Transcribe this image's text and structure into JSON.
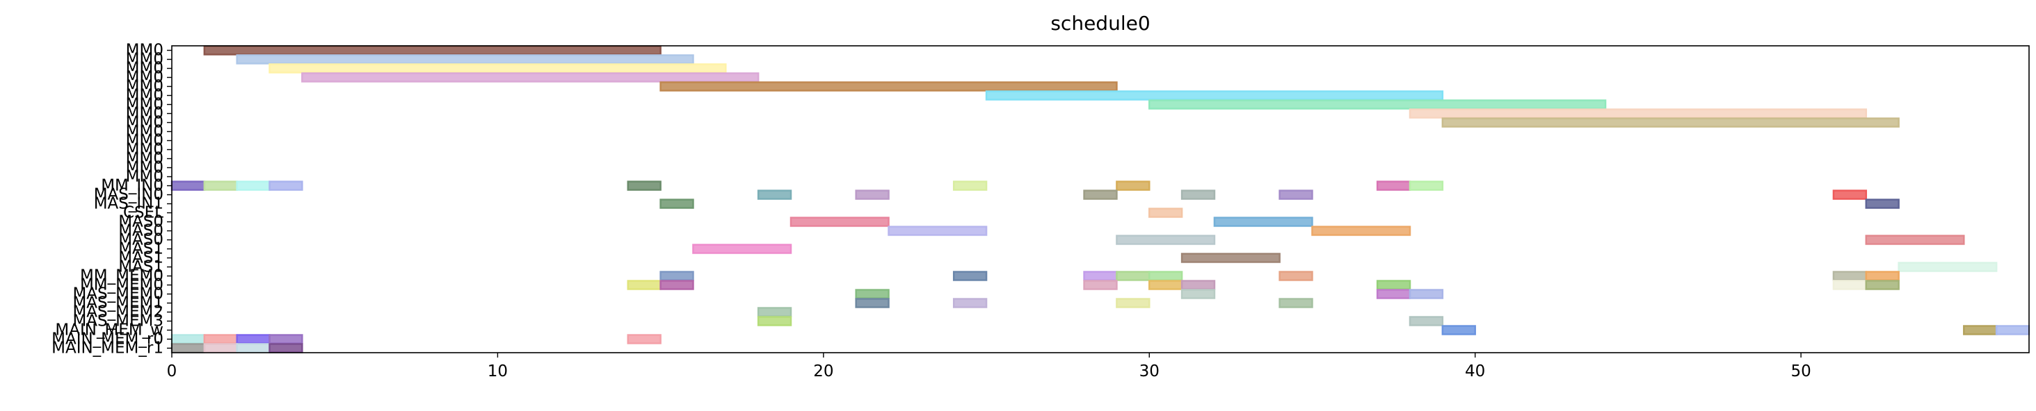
{
  "chart_data": {
    "type": "gantt",
    "title": "schedule0",
    "xlabel": "",
    "ylabel": "",
    "xlim": [
      0,
      57
    ],
    "grid": false,
    "legend": "none",
    "x_ticks": [
      0,
      10,
      20,
      30,
      40,
      50
    ],
    "rows": [
      "MM0",
      "MM0",
      "MM0",
      "MM0",
      "MM0",
      "MM0",
      "MM0",
      "MM0",
      "MM0",
      "MM0",
      "MM0",
      "MM0",
      "MM0",
      "MM0",
      "MM0",
      "MM_IN0",
      "MAS_IN0",
      "MAS_IN1",
      "CSEL",
      "MAS0",
      "MAS0",
      "MAS0",
      "MAS1",
      "MAS1",
      "MAS1",
      "MM_MEM0",
      "MM_MEM0",
      "MAS_MEM0",
      "MAS_MEM1",
      "MAS_MEM2",
      "MAS_MEM3",
      "MAIN_MEM_w",
      "MAIN_MEM_r0",
      "MAIN_MEM_r1"
    ],
    "bars": [
      {
        "row": 0,
        "start": 1,
        "end": 15,
        "color": "#8c564b"
      },
      {
        "row": 1,
        "start": 2,
        "end": 16,
        "color": "#aec7e8"
      },
      {
        "row": 2,
        "start": 3,
        "end": 17,
        "color": "#fff2a8"
      },
      {
        "row": 3,
        "start": 4,
        "end": 18,
        "color": "#dba8d6"
      },
      {
        "row": 4,
        "start": 15,
        "end": 29,
        "color": "#c08850"
      },
      {
        "row": 5,
        "start": 25,
        "end": 39,
        "color": "#7fe0f5"
      },
      {
        "row": 6,
        "start": 30,
        "end": 44,
        "color": "#8fe8bc"
      },
      {
        "row": 7,
        "start": 38,
        "end": 52,
        "color": "#f7d4c0"
      },
      {
        "row": 8,
        "start": 39,
        "end": 53,
        "color": "#c9bc8c"
      },
      {
        "row": 15,
        "start": 0,
        "end": 1,
        "color": "#7d68c2"
      },
      {
        "row": 15,
        "start": 1,
        "end": 2,
        "color": "#bfe0a0"
      },
      {
        "row": 15,
        "start": 2,
        "end": 3,
        "color": "#b2f5ee"
      },
      {
        "row": 15,
        "start": 3,
        "end": 4,
        "color": "#aab4ee"
      },
      {
        "row": 15,
        "start": 14,
        "end": 15,
        "color": "#6b8c6b"
      },
      {
        "row": 15,
        "start": 24,
        "end": 25,
        "color": "#d8eda0"
      },
      {
        "row": 15,
        "start": 29,
        "end": 30,
        "color": "#d6ad58"
      },
      {
        "row": 15,
        "start": 37,
        "end": 38,
        "color": "#d874b4"
      },
      {
        "row": 15,
        "start": 38,
        "end": 39,
        "color": "#b8f0a8"
      },
      {
        "row": 16,
        "start": 18,
        "end": 19,
        "color": "#7aaeb6"
      },
      {
        "row": 16,
        "start": 21,
        "end": 22,
        "color": "#bb9ac8"
      },
      {
        "row": 16,
        "start": 28,
        "end": 29,
        "color": "#9e9e86"
      },
      {
        "row": 16,
        "start": 31,
        "end": 32,
        "color": "#a5b5b0"
      },
      {
        "row": 16,
        "start": 34,
        "end": 35,
        "color": "#a28ac8"
      },
      {
        "row": 16,
        "start": 51,
        "end": 52,
        "color": "#ee5a5a"
      },
      {
        "row": 17,
        "start": 15,
        "end": 16,
        "color": "#6e9870"
      },
      {
        "row": 17,
        "start": 52,
        "end": 53,
        "color": "#5e6496"
      },
      {
        "row": 18,
        "start": 30,
        "end": 31,
        "color": "#f3c4a4"
      },
      {
        "row": 19,
        "start": 19,
        "end": 22,
        "color": "#e8849c"
      },
      {
        "row": 19,
        "start": 32,
        "end": 35,
        "color": "#74b0d8"
      },
      {
        "row": 20,
        "start": 22,
        "end": 25,
        "color": "#b8b6ee"
      },
      {
        "row": 20,
        "start": 35,
        "end": 38,
        "color": "#eca868"
      },
      {
        "row": 21,
        "start": 29,
        "end": 32,
        "color": "#b8c8cc"
      },
      {
        "row": 21,
        "start": 52,
        "end": 55,
        "color": "#e2888e"
      },
      {
        "row": 22,
        "start": 16,
        "end": 19,
        "color": "#ee8ccc"
      },
      {
        "row": 23,
        "start": 31,
        "end": 34,
        "color": "#9e8474"
      },
      {
        "row": 24,
        "start": 53,
        "end": 56,
        "color": "#d8f4e6"
      },
      {
        "row": 25,
        "start": 15,
        "end": 16,
        "color": "#7e98c4"
      },
      {
        "row": 25,
        "start": 24,
        "end": 25,
        "color": "#6a86aa"
      },
      {
        "row": 25,
        "start": 28,
        "end": 29,
        "color": "#c29cea"
      },
      {
        "row": 25,
        "start": 29,
        "end": 30,
        "color": "#aed892"
      },
      {
        "row": 25,
        "start": 30,
        "end": 31,
        "color": "#a8e29a"
      },
      {
        "row": 25,
        "start": 34,
        "end": 35,
        "color": "#e6a284"
      },
      {
        "row": 25,
        "start": 51,
        "end": 52,
        "color": "#b6b8a2"
      },
      {
        "row": 25,
        "start": 52,
        "end": 53,
        "color": "#eea860"
      },
      {
        "row": 26,
        "start": 14,
        "end": 15,
        "color": "#e0e47a"
      },
      {
        "row": 26,
        "start": 15,
        "end": 16,
        "color": "#b464a8"
      },
      {
        "row": 26,
        "start": 28,
        "end": 29,
        "color": "#dca4bc"
      },
      {
        "row": 26,
        "start": 30,
        "end": 31,
        "color": "#e6bc62"
      },
      {
        "row": 26,
        "start": 31,
        "end": 32,
        "color": "#c49cba"
      },
      {
        "row": 26,
        "start": 37,
        "end": 38,
        "color": "#94d078"
      },
      {
        "row": 26,
        "start": 51,
        "end": 52,
        "color": "#f0f0dc"
      },
      {
        "row": 26,
        "start": 52,
        "end": 53,
        "color": "#a4b478"
      },
      {
        "row": 27,
        "start": 21,
        "end": 22,
        "color": "#84bc80"
      },
      {
        "row": 27,
        "start": 31,
        "end": 32,
        "color": "#b8ccc4"
      },
      {
        "row": 27,
        "start": 37,
        "end": 38,
        "color": "#c07ccc"
      },
      {
        "row": 27,
        "start": 38,
        "end": 39,
        "color": "#a8b4e8"
      },
      {
        "row": 28,
        "start": 21,
        "end": 22,
        "color": "#6e88a0"
      },
      {
        "row": 28,
        "start": 24,
        "end": 25,
        "color": "#c0b2d8"
      },
      {
        "row": 28,
        "start": 29,
        "end": 30,
        "color": "#e4e8a2"
      },
      {
        "row": 28,
        "start": 34,
        "end": 35,
        "color": "#a4c0a0"
      },
      {
        "row": 29,
        "start": 18,
        "end": 19,
        "color": "#a2c4aa"
      },
      {
        "row": 30,
        "start": 18,
        "end": 19,
        "color": "#b4dc78"
      },
      {
        "row": 30,
        "start": 38,
        "end": 39,
        "color": "#b0c4c0"
      },
      {
        "row": 31,
        "start": 39,
        "end": 40,
        "color": "#6a94e0"
      },
      {
        "row": 31,
        "start": 55,
        "end": 56,
        "color": "#b4a25c"
      },
      {
        "row": 31,
        "start": 56,
        "end": 57,
        "color": "#a8b8ee"
      },
      {
        "row": 32,
        "start": 0,
        "end": 1,
        "color": "#b2e8e4"
      },
      {
        "row": 32,
        "start": 1,
        "end": 2,
        "color": "#f4a0a0"
      },
      {
        "row": 32,
        "start": 2,
        "end": 3,
        "color": "#7e64ee"
      },
      {
        "row": 32,
        "start": 3,
        "end": 4,
        "color": "#9870c4"
      },
      {
        "row": 32,
        "start": 14,
        "end": 15,
        "color": "#f4a0a8"
      },
      {
        "row": 33,
        "start": 0,
        "end": 1,
        "color": "#9a9a96"
      },
      {
        "row": 33,
        "start": 1,
        "end": 2,
        "color": "#e4c4cc"
      },
      {
        "row": 33,
        "start": 2,
        "end": 3,
        "color": "#c4dce4"
      },
      {
        "row": 33,
        "start": 3,
        "end": 4,
        "color": "#7c4e90"
      }
    ]
  }
}
